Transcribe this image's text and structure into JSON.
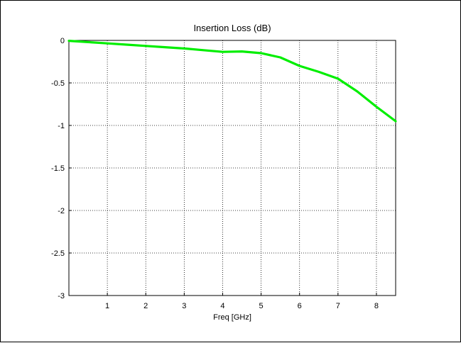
{
  "chart_data": {
    "type": "line",
    "title": "Insertion Loss (dB)",
    "xlabel": "Freq [GHz]",
    "ylabel": "",
    "xlim": [
      0,
      8.5
    ],
    "ylim": [
      -3,
      0
    ],
    "xticks": [
      1,
      2,
      3,
      4,
      5,
      6,
      7,
      8
    ],
    "xtick_labels": [
      "1",
      "2",
      "3",
      "4",
      "5",
      "6",
      "7",
      "8"
    ],
    "yticks": [
      0,
      -0.5,
      -1,
      -1.5,
      -2,
      -2.5,
      -3
    ],
    "ytick_labels": [
      "0",
      "-0.5",
      "-1",
      "-1.5",
      "-2",
      "-2.5",
      "-3"
    ],
    "grid": true,
    "series": [
      {
        "color": "#00ee00",
        "x": [
          0,
          0.5,
          1,
          1.5,
          2,
          2.5,
          3,
          3.5,
          4,
          4.5,
          5,
          5.5,
          6,
          6.5,
          7,
          7.5,
          8,
          8.5
        ],
        "y": [
          -0.005,
          -0.02,
          -0.035,
          -0.05,
          -0.065,
          -0.08,
          -0.095,
          -0.115,
          -0.135,
          -0.13,
          -0.15,
          -0.2,
          -0.3,
          -0.37,
          -0.45,
          -0.6,
          -0.78,
          -0.95
        ]
      }
    ]
  }
}
